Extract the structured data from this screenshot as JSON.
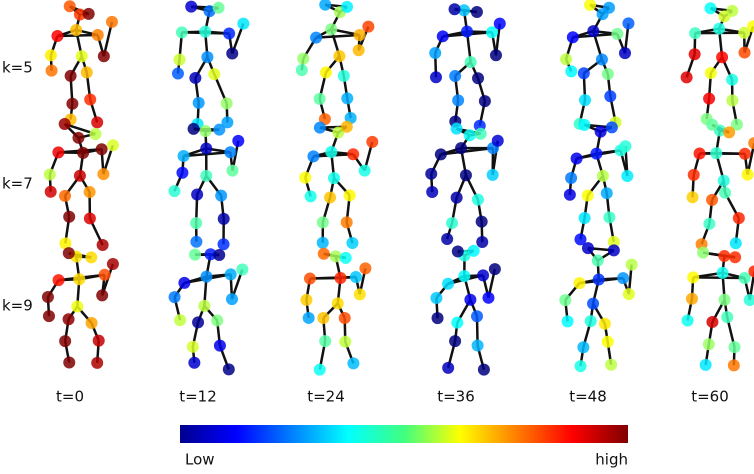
{
  "rows": [
    {
      "label": "k=5"
    },
    {
      "label": "k=7"
    },
    {
      "label": "k=9"
    }
  ],
  "columns": [
    "t=0",
    "t=12",
    "t=24",
    "t=36",
    "t=48",
    "t=60"
  ],
  "colorbar": {
    "low": "Low",
    "high": "high"
  }
}
